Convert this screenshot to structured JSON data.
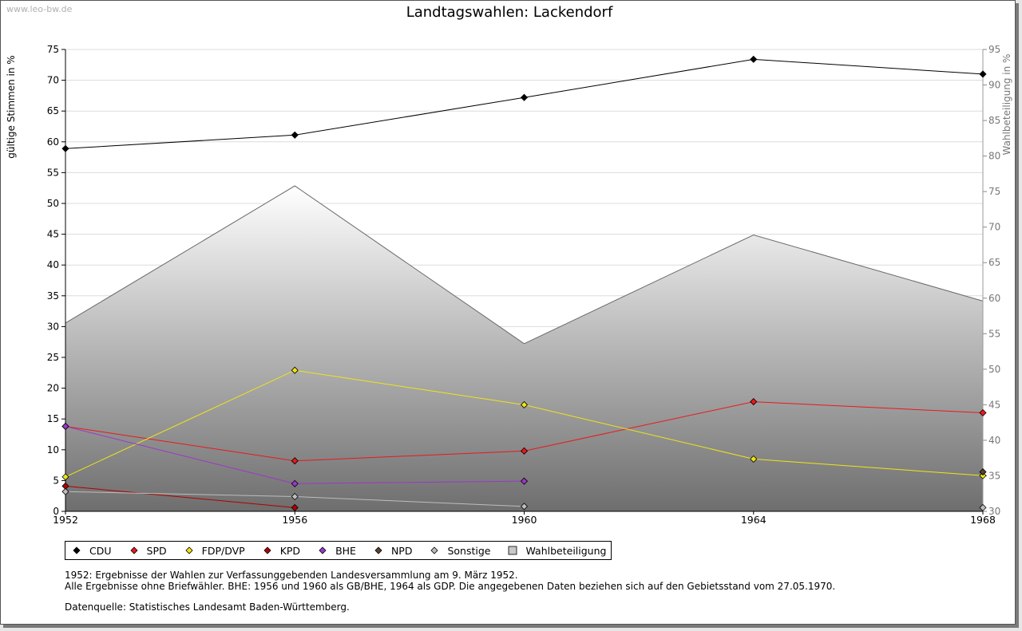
{
  "watermark": "www.leo-bw.de",
  "chart_data": {
    "type": "line",
    "title": "Landtagswahlen: Lackendorf",
    "ylabel": "gültige Stimmen in %",
    "y2label": "Wahlbeteiligung in %",
    "categories": [
      "1952",
      "1956",
      "1960",
      "1964",
      "1968"
    ],
    "ylim": [
      0,
      75
    ],
    "y2lim": [
      30,
      95
    ],
    "yticks": [
      0,
      5,
      10,
      15,
      20,
      25,
      30,
      35,
      40,
      45,
      50,
      55,
      60,
      65,
      70,
      75
    ],
    "y2ticks": [
      30,
      35,
      40,
      45,
      50,
      55,
      60,
      65,
      70,
      75,
      80,
      85,
      90,
      95
    ],
    "grid": true,
    "series": [
      {
        "name": "CDU",
        "color": "#000000",
        "axis": "left",
        "values": [
          58.9,
          61.1,
          67.2,
          73.4,
          71.0
        ]
      },
      {
        "name": "SPD",
        "color": "#e8191c",
        "axis": "left",
        "values": [
          13.8,
          8.2,
          9.8,
          17.8,
          16.0
        ]
      },
      {
        "name": "FDP/DVP",
        "color": "#f0e418",
        "axis": "left",
        "values": [
          5.6,
          22.9,
          17.3,
          8.5,
          5.8
        ]
      },
      {
        "name": "KPD",
        "color": "#b00000",
        "axis": "left",
        "values": [
          4.1,
          0.6,
          null,
          null,
          null
        ]
      },
      {
        "name": "BHE",
        "color": "#9a38c8",
        "axis": "left",
        "values": [
          13.8,
          4.5,
          4.9,
          null,
          null
        ]
      },
      {
        "name": "NPD",
        "color": "#5a4030",
        "axis": "left",
        "values": [
          null,
          null,
          null,
          null,
          6.4
        ]
      },
      {
        "name": "Sonstige",
        "color": "#bdbdbd",
        "axis": "left",
        "values": [
          3.2,
          2.4,
          0.8,
          null,
          0.6
        ]
      },
      {
        "name": "Wahlbeteiligung",
        "color": "#999999",
        "axis": "right",
        "type": "area",
        "values": [
          56.5,
          75.8,
          53.6,
          68.9,
          59.6
        ]
      }
    ]
  },
  "notes": {
    "line1": "1952: Ergebnisse der Wahlen zur Verfassunggebenden Landesversammlung am 9. März 1952.",
    "line2": "Alle Ergebnisse ohne Briefwähler. BHE: 1956 und 1960 als GB/BHE, 1964 als GDP. Die angegebenen Daten beziehen sich auf den Gebietsstand vom 27.05.1970.",
    "source": "Datenquelle: Statistisches Landesamt Baden-Württemberg."
  }
}
